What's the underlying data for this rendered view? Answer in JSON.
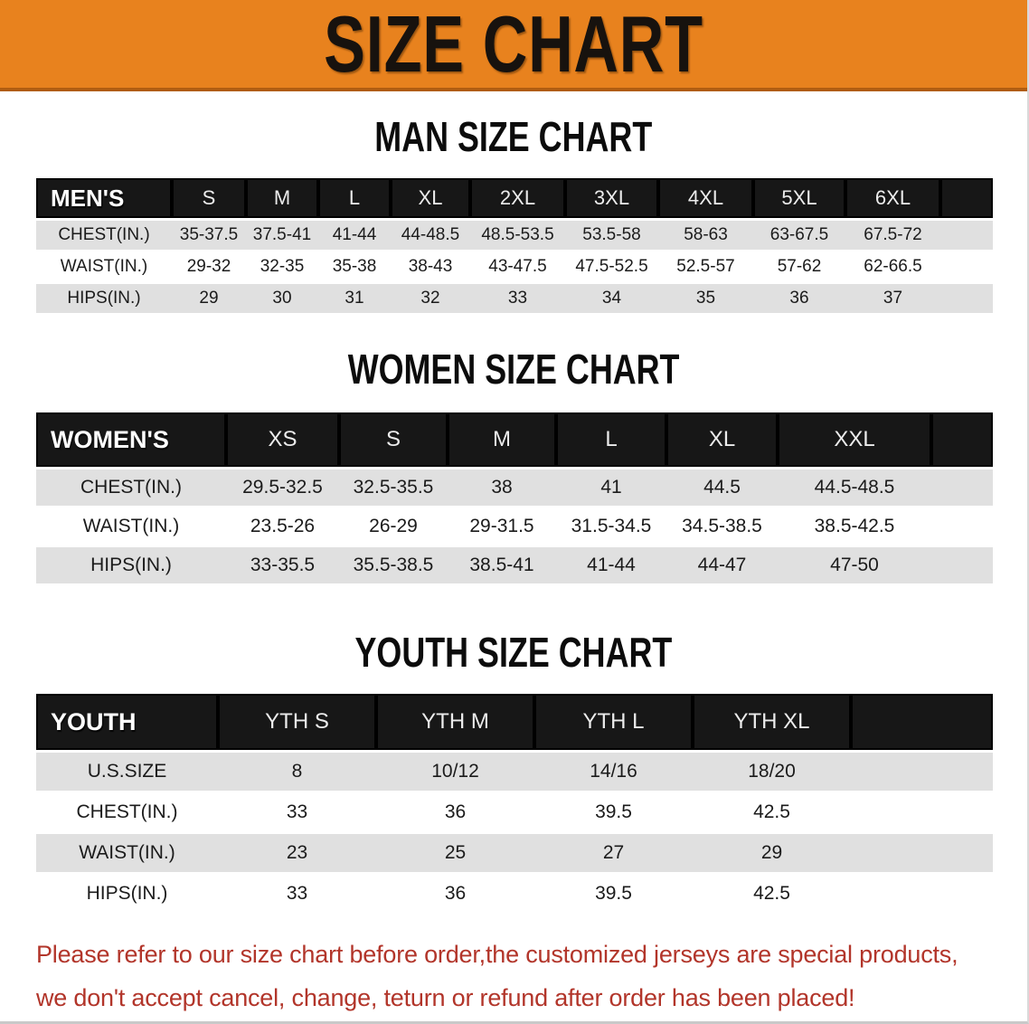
{
  "banner": {
    "title": "SIZE CHART",
    "bg_color": "#e8821e",
    "text_color": "#17120e"
  },
  "colors": {
    "table_header_bg": "#171717",
    "table_header_text": "#ffffff",
    "row_alt_bg": "#e0e0e0",
    "row_bg": "#ffffff",
    "disclaimer_text": "#b2352a"
  },
  "sections": [
    {
      "heading": "MAN SIZE CHART",
      "table": {
        "corner_label": "MEN'S",
        "columns": [
          "S",
          "M",
          "L",
          "XL",
          "2XL",
          "3XL",
          "4XL",
          "5XL",
          "6XL"
        ],
        "rows": [
          {
            "label": "CHEST(IN.)",
            "values": [
              "35-37.5",
              "37.5-41",
              "41-44",
              "44-48.5",
              "48.5-53.5",
              "53.5-58",
              "58-63",
              "63-67.5",
              "67.5-72"
            ]
          },
          {
            "label": "WAIST(IN.)",
            "values": [
              "29-32",
              "32-35",
              "35-38",
              "38-43",
              "43-47.5",
              "47.5-52.5",
              "52.5-57",
              "57-62",
              "62-66.5"
            ]
          },
          {
            "label": "HIPS(IN.)",
            "values": [
              "29",
              "30",
              "31",
              "32",
              "33",
              "34",
              "35",
              "36",
              "37"
            ]
          }
        ]
      }
    },
    {
      "heading": "WOMEN SIZE CHART",
      "table": {
        "corner_label": "WOMEN'S",
        "columns": [
          "XS",
          "S",
          "M",
          "L",
          "XL",
          "XXL"
        ],
        "rows": [
          {
            "label": "CHEST(IN.)",
            "values": [
              "29.5-32.5",
              "32.5-35.5",
              "38",
              "41",
              "44.5",
              "44.5-48.5"
            ]
          },
          {
            "label": "WAIST(IN.)",
            "values": [
              "23.5-26",
              "26-29",
              "29-31.5",
              "31.5-34.5",
              "34.5-38.5",
              "38.5-42.5"
            ]
          },
          {
            "label": "HIPS(IN.)",
            "values": [
              "33-35.5",
              "35.5-38.5",
              "38.5-41",
              "41-44",
              "44-47",
              "47-50"
            ]
          }
        ]
      }
    },
    {
      "heading": "YOUTH SIZE CHART",
      "table": {
        "corner_label": "YOUTH",
        "columns": [
          "YTH S",
          "YTH M",
          "YTH L",
          "YTH XL"
        ],
        "rows": [
          {
            "label": "U.S.SIZE",
            "values": [
              "8",
              "10/12",
              "14/16",
              "18/20"
            ]
          },
          {
            "label": "CHEST(IN.)",
            "values": [
              "33",
              "36",
              "39.5",
              "42.5"
            ]
          },
          {
            "label": "WAIST(IN.)",
            "values": [
              "23",
              "25",
              "27",
              "29"
            ]
          },
          {
            "label": "HIPS(IN.)",
            "values": [
              "33",
              "36",
              "39.5",
              "42.5"
            ]
          }
        ]
      }
    }
  ],
  "disclaimer": {
    "lines": [
      "Please refer to our size chart before order,the customized jerseys are special products,",
      "we don't accept cancel, change, teturn or refund after order has been placed!"
    ]
  }
}
